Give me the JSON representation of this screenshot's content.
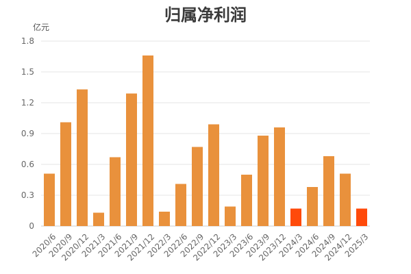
{
  "chart_data": {
    "type": "bar",
    "title": "归属净利润",
    "unit": "亿元",
    "categories": [
      "2020/6",
      "2020/9",
      "2020/12",
      "2021/3",
      "2021/6",
      "2021/9",
      "2021/12",
      "2022/3",
      "2022/6",
      "2022/9",
      "2022/12",
      "2023/3",
      "2023/6",
      "2023/9",
      "2023/12",
      "2024/3",
      "2024/6",
      "2024/9",
      "2024/12",
      "2025/3"
    ],
    "values": [
      0.51,
      1.01,
      1.33,
      0.13,
      0.67,
      1.29,
      1.66,
      0.14,
      0.41,
      0.77,
      0.99,
      0.19,
      0.5,
      0.88,
      0.96,
      0.17,
      0.38,
      0.68,
      0.51,
      0.17
    ],
    "highlight_categories": [
      "2024/3",
      "2025/3"
    ],
    "ylim": [
      0,
      1.8
    ],
    "yticks": [
      "0",
      "0.3",
      "0.6",
      "0.9",
      "1.2",
      "1.5",
      "1.8"
    ],
    "grid": true,
    "colors": {
      "bar": "#e9913c",
      "highlight": "#ff4a0a",
      "grid": "#e6e6e6",
      "text": "#666666"
    }
  }
}
